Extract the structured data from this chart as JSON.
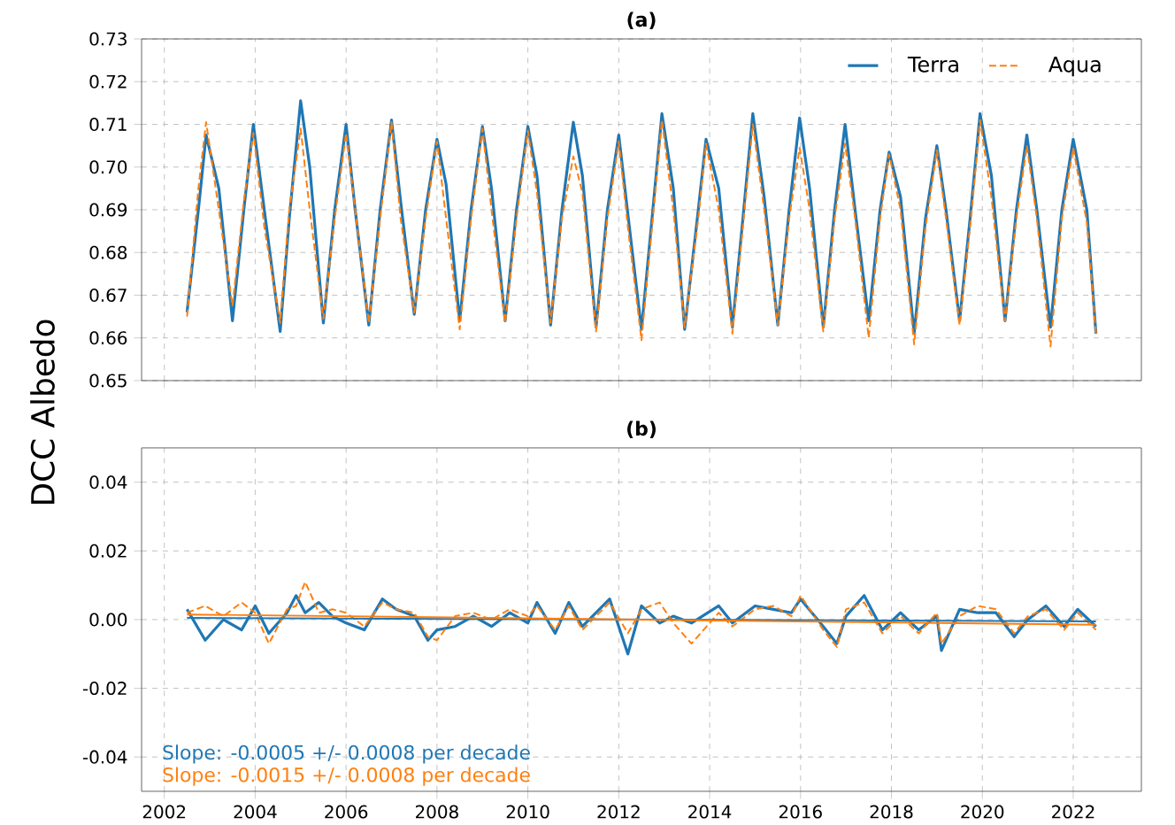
{
  "chart_data": [
    {
      "type": "line",
      "title": "(a)",
      "ylabel": "DCC Albedo",
      "xlim": [
        2001.5,
        2023.5
      ],
      "ylim": [
        0.65,
        0.73
      ],
      "xticks": [
        2002,
        2004,
        2006,
        2008,
        2010,
        2012,
        2014,
        2016,
        2018,
        2020,
        2022
      ],
      "yticks": [
        0.65,
        0.66,
        0.67,
        0.68,
        0.69,
        {
          "value": 0.7,
          "label": "0.70"
        },
        0.71,
        0.72,
        0.73
      ],
      "tick_labels": "y",
      "grid": true,
      "legend": "top right",
      "series": [
        {
          "name": "Terra",
          "color": "#1f77b4",
          "line_style": "solid",
          "x": [
            2002.5,
            2002.75,
            2002.92,
            2003.2,
            2003.5,
            2003.75,
            2003.96,
            2004.2,
            2004.55,
            2004.75,
            2005.0,
            2005.2,
            2005.5,
            2005.75,
            2006.0,
            2006.2,
            2006.5,
            2006.75,
            2007.0,
            2007.2,
            2007.5,
            2007.75,
            2008.0,
            2008.2,
            2008.5,
            2008.75,
            2009.0,
            2009.2,
            2009.5,
            2009.75,
            2010.0,
            2010.2,
            2010.5,
            2010.75,
            2011.0,
            2011.2,
            2011.5,
            2011.75,
            2012.0,
            2012.2,
            2012.5,
            2012.75,
            2012.95,
            2013.2,
            2013.45,
            2013.75,
            2013.92,
            2014.2,
            2014.5,
            2014.75,
            2014.95,
            2015.2,
            2015.5,
            2015.75,
            2015.98,
            2016.2,
            2016.5,
            2016.75,
            2016.98,
            2017.2,
            2017.5,
            2017.75,
            2017.95,
            2018.2,
            2018.5,
            2018.75,
            2019.0,
            2019.2,
            2019.5,
            2019.75,
            2019.95,
            2020.2,
            2020.5,
            2020.75,
            2020.98,
            2021.2,
            2021.5,
            2021.75,
            2022.0,
            2022.3,
            2022.5
          ],
          "values": [
            0.666,
            0.69,
            0.7075,
            0.695,
            0.664,
            0.69,
            0.71,
            0.69,
            0.6615,
            0.688,
            0.7155,
            0.7,
            0.6635,
            0.69,
            0.71,
            0.69,
            0.663,
            0.69,
            0.711,
            0.692,
            0.6655,
            0.69,
            0.7065,
            0.696,
            0.664,
            0.69,
            0.7095,
            0.695,
            0.664,
            0.69,
            0.7095,
            0.698,
            0.663,
            0.69,
            0.7105,
            0.698,
            0.6625,
            0.69,
            0.7075,
            0.689,
            0.662,
            0.69,
            0.7125,
            0.695,
            0.662,
            0.69,
            0.7065,
            0.695,
            0.6625,
            0.69,
            0.7125,
            0.693,
            0.663,
            0.69,
            0.7115,
            0.695,
            0.6625,
            0.69,
            0.71,
            0.69,
            0.664,
            0.69,
            0.7035,
            0.693,
            0.661,
            0.688,
            0.705,
            0.69,
            0.664,
            0.69,
            0.7125,
            0.698,
            0.664,
            0.69,
            0.7075,
            0.69,
            0.6625,
            0.69,
            0.7065,
            0.69,
            0.661
          ]
        },
        {
          "name": "Aqua",
          "color": "#ff7f0e",
          "line_style": "dashed",
          "x": [
            2002.5,
            2002.75,
            2002.92,
            2003.2,
            2003.5,
            2003.75,
            2003.96,
            2004.2,
            2004.55,
            2004.75,
            2005.0,
            2005.2,
            2005.5,
            2005.75,
            2006.0,
            2006.2,
            2006.5,
            2006.75,
            2007.0,
            2007.2,
            2007.5,
            2007.75,
            2008.0,
            2008.2,
            2008.5,
            2008.75,
            2009.0,
            2009.2,
            2009.5,
            2009.75,
            2010.0,
            2010.2,
            2010.5,
            2010.75,
            2011.0,
            2011.2,
            2011.5,
            2011.75,
            2012.0,
            2012.2,
            2012.5,
            2012.75,
            2012.95,
            2013.2,
            2013.45,
            2013.75,
            2013.92,
            2014.2,
            2014.5,
            2014.75,
            2014.95,
            2015.2,
            2015.5,
            2015.75,
            2015.98,
            2016.2,
            2016.5,
            2016.75,
            2016.98,
            2017.2,
            2017.5,
            2017.75,
            2017.95,
            2018.2,
            2018.5,
            2018.75,
            2019.0,
            2019.2,
            2019.5,
            2019.75,
            2019.95,
            2020.2,
            2020.5,
            2020.75,
            2020.98,
            2021.2,
            2021.5,
            2021.75,
            2022.0,
            2022.3,
            2022.5
          ],
          "values": [
            0.665,
            0.695,
            0.7105,
            0.69,
            0.6675,
            0.692,
            0.708,
            0.686,
            0.6635,
            0.69,
            0.709,
            0.69,
            0.6645,
            0.688,
            0.708,
            0.69,
            0.6635,
            0.688,
            0.7105,
            0.688,
            0.666,
            0.688,
            0.706,
            0.688,
            0.662,
            0.688,
            0.709,
            0.69,
            0.6635,
            0.688,
            0.7085,
            0.694,
            0.6635,
            0.688,
            0.7025,
            0.694,
            0.6615,
            0.688,
            0.706,
            0.686,
            0.6595,
            0.688,
            0.711,
            0.69,
            0.6625,
            0.688,
            0.7055,
            0.69,
            0.661,
            0.688,
            0.71,
            0.69,
            0.663,
            0.688,
            0.7045,
            0.69,
            0.6615,
            0.688,
            0.7055,
            0.688,
            0.66,
            0.688,
            0.703,
            0.69,
            0.6585,
            0.686,
            0.704,
            0.688,
            0.663,
            0.688,
            0.711,
            0.693,
            0.664,
            0.688,
            0.705,
            0.688,
            0.658,
            0.688,
            0.7045,
            0.687,
            0.661
          ]
        }
      ]
    },
    {
      "type": "line",
      "title": "(b)",
      "xlim": [
        2001.5,
        2023.5
      ],
      "ylim": [
        -0.05,
        0.05
      ],
      "xticks": [
        2002,
        2004,
        2006,
        2008,
        2010,
        2012,
        2014,
        2016,
        2018,
        2020,
        2022
      ],
      "yticks": [
        -0.04,
        -0.02,
        {
          "value": 0,
          "label": "0.00"
        },
        0.02,
        0.04
      ],
      "grid": true,
      "annotations": [
        "Slope: -0.0005 +/- 0.0008 per decade",
        "Slope: -0.0015 +/- 0.0008 per decade"
      ],
      "series": [
        {
          "color": "#1f77b4",
          "line_style": "solid",
          "x": [
            2002.5,
            2002.9,
            2003.3,
            2003.7,
            2004.0,
            2004.3,
            2004.7,
            2004.9,
            2005.1,
            2005.4,
            2005.7,
            2006.0,
            2006.4,
            2006.8,
            2007.1,
            2007.5,
            2007.8,
            2008.0,
            2008.4,
            2008.8,
            2009.2,
            2009.6,
            2010.0,
            2010.2,
            2010.6,
            2010.9,
            2011.2,
            2011.8,
            2012.2,
            2012.5,
            2012.9,
            2013.2,
            2013.6,
            2014.2,
            2014.5,
            2015.0,
            2015.4,
            2015.8,
            2016.0,
            2016.5,
            2016.8,
            2017.0,
            2017.4,
            2017.8,
            2018.2,
            2018.6,
            2019.0,
            2019.1,
            2019.5,
            2019.9,
            2020.3,
            2020.7,
            2021.0,
            2021.4,
            2021.8,
            2022.1,
            2022.5
          ],
          "values": [
            0.003,
            -0.006,
            0.0,
            -0.003,
            0.004,
            -0.004,
            0.002,
            0.007,
            0.002,
            0.005,
            0.001,
            -0.001,
            -0.003,
            0.006,
            0.003,
            0.001,
            -0.006,
            -0.003,
            -0.002,
            0.001,
            -0.002,
            0.002,
            -0.001,
            0.005,
            -0.004,
            0.005,
            -0.002,
            0.006,
            -0.01,
            0.004,
            -0.001,
            0.001,
            -0.001,
            0.004,
            -0.001,
            0.004,
            0.003,
            0.002,
            0.006,
            -0.002,
            -0.007,
            0.001,
            0.007,
            -0.003,
            0.002,
            -0.003,
            0.001,
            -0.009,
            0.003,
            0.002,
            0.002,
            -0.005,
            0.0,
            0.004,
            -0.002,
            0.003,
            -0.002
          ]
        },
        {
          "color": "#ff7f0e",
          "line_style": "dashed",
          "x": [
            2002.5,
            2002.9,
            2003.3,
            2003.7,
            2004.0,
            2004.3,
            2004.7,
            2004.9,
            2005.1,
            2005.4,
            2005.7,
            2006.0,
            2006.4,
            2006.8,
            2007.1,
            2007.5,
            2007.8,
            2008.0,
            2008.4,
            2008.8,
            2009.2,
            2009.6,
            2010.0,
            2010.2,
            2010.6,
            2010.9,
            2011.2,
            2011.8,
            2012.2,
            2012.5,
            2012.9,
            2013.2,
            2013.6,
            2014.2,
            2014.5,
            2015.0,
            2015.4,
            2015.8,
            2016.0,
            2016.5,
            2016.8,
            2017.0,
            2017.4,
            2017.8,
            2018.2,
            2018.6,
            2019.0,
            2019.1,
            2019.5,
            2019.9,
            2020.3,
            2020.7,
            2021.0,
            2021.4,
            2021.8,
            2022.1,
            2022.5
          ],
          "values": [
            0.002,
            0.004,
            0.001,
            0.005,
            0.002,
            -0.007,
            0.003,
            0.004,
            0.011,
            0.002,
            0.003,
            0.002,
            -0.002,
            0.005,
            0.003,
            0.002,
            -0.005,
            -0.006,
            0.001,
            0.002,
            0.0,
            0.003,
            0.001,
            0.004,
            -0.003,
            0.004,
            -0.003,
            0.005,
            -0.004,
            0.003,
            0.005,
            -0.001,
            -0.007,
            0.002,
            -0.002,
            0.003,
            0.004,
            0.001,
            0.007,
            -0.003,
            -0.008,
            0.003,
            0.005,
            -0.004,
            0.001,
            -0.004,
            0.002,
            -0.007,
            0.001,
            0.004,
            0.003,
            -0.004,
            0.001,
            0.003,
            -0.003,
            0.002,
            -0.003
          ]
        },
        {
          "type": "line",
          "color": "#1f77b4",
          "line_style": "solid",
          "x": [
            2002.5,
            2022.5
          ],
          "values": [
            0.0005,
            -0.0005
          ]
        },
        {
          "type": "line",
          "color": "#ff7f0e",
          "line_style": "solid",
          "x": [
            2002.5,
            2022.5
          ],
          "values": [
            0.0015,
            -0.0015
          ]
        }
      ]
    }
  ]
}
